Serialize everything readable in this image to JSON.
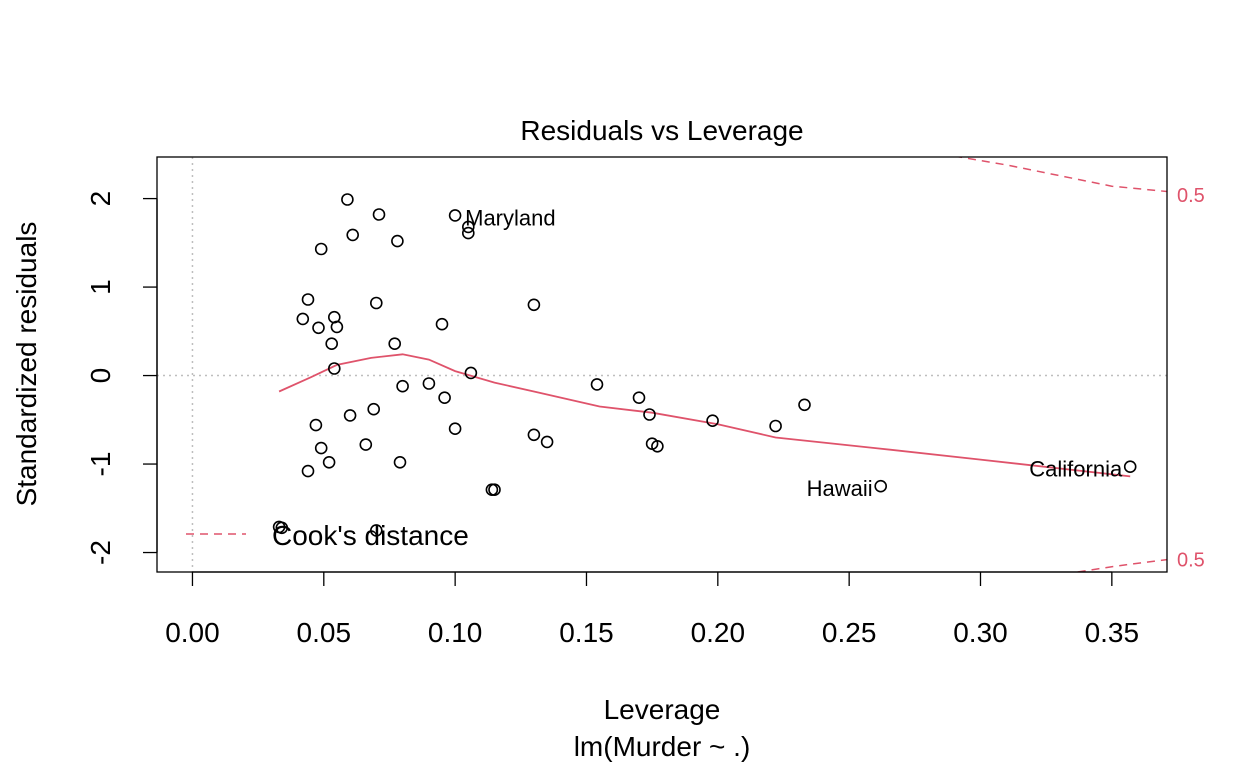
{
  "chart_data": {
    "type": "scatter",
    "title": "Residuals vs Leverage",
    "xlabel": "Leverage",
    "xsublabel": "lm(Murder ~ .)",
    "ylabel": "Standardized residuals",
    "xlim": [
      -0.0135,
      0.371
    ],
    "ylim": [
      -2.22,
      2.47
    ],
    "x_ticks": [
      {
        "value": 0.0,
        "label": "0.00"
      },
      {
        "value": 0.05,
        "label": "0.05"
      },
      {
        "value": 0.1,
        "label": "0.10"
      },
      {
        "value": 0.15,
        "label": "0.15"
      },
      {
        "value": 0.2,
        "label": "0.20"
      },
      {
        "value": 0.25,
        "label": "0.25"
      },
      {
        "value": 0.3,
        "label": "0.30"
      },
      {
        "value": 0.35,
        "label": "0.35"
      }
    ],
    "y_ticks": [
      {
        "value": -2,
        "label": "-2"
      },
      {
        "value": -1,
        "label": "-1"
      },
      {
        "value": 0,
        "label": "0"
      },
      {
        "value": 1,
        "label": "1"
      },
      {
        "value": 2,
        "label": "2"
      }
    ],
    "points": [
      {
        "x": 0.033,
        "y": -1.71
      },
      {
        "x": 0.034,
        "y": -1.72
      },
      {
        "x": 0.042,
        "y": 0.64
      },
      {
        "x": 0.044,
        "y": 0.86
      },
      {
        "x": 0.044,
        "y": -1.08
      },
      {
        "x": 0.047,
        "y": -0.56
      },
      {
        "x": 0.048,
        "y": 0.54
      },
      {
        "x": 0.049,
        "y": -0.82
      },
      {
        "x": 0.049,
        "y": 1.43
      },
      {
        "x": 0.052,
        "y": -0.98
      },
      {
        "x": 0.053,
        "y": 0.36
      },
      {
        "x": 0.054,
        "y": 0.66
      },
      {
        "x": 0.054,
        "y": 0.08
      },
      {
        "x": 0.055,
        "y": 0.55
      },
      {
        "x": 0.059,
        "y": 1.99
      },
      {
        "x": 0.06,
        "y": -0.45
      },
      {
        "x": 0.061,
        "y": 1.59
      },
      {
        "x": 0.066,
        "y": -0.78
      },
      {
        "x": 0.069,
        "y": -0.38
      },
      {
        "x": 0.07,
        "y": 0.82
      },
      {
        "x": 0.07,
        "y": -1.75
      },
      {
        "x": 0.071,
        "y": 1.82
      },
      {
        "x": 0.077,
        "y": 0.36
      },
      {
        "x": 0.078,
        "y": 1.52
      },
      {
        "x": 0.079,
        "y": -0.98
      },
      {
        "x": 0.08,
        "y": -0.12
      },
      {
        "x": 0.09,
        "y": -0.09
      },
      {
        "x": 0.095,
        "y": 0.58
      },
      {
        "x": 0.096,
        "y": -0.25
      },
      {
        "x": 0.1,
        "y": 1.81
      },
      {
        "x": 0.1,
        "y": -0.6
      },
      {
        "x": 0.105,
        "y": 1.68
      },
      {
        "x": 0.105,
        "y": 1.61
      },
      {
        "x": 0.106,
        "y": 0.03
      },
      {
        "x": 0.114,
        "y": -1.29
      },
      {
        "x": 0.115,
        "y": -1.29
      },
      {
        "x": 0.13,
        "y": 0.8
      },
      {
        "x": 0.13,
        "y": -0.67
      },
      {
        "x": 0.135,
        "y": -0.75
      },
      {
        "x": 0.154,
        "y": -0.1
      },
      {
        "x": 0.17,
        "y": -0.25
      },
      {
        "x": 0.174,
        "y": -0.44
      },
      {
        "x": 0.175,
        "y": -0.77
      },
      {
        "x": 0.177,
        "y": -0.8
      },
      {
        "x": 0.198,
        "y": -0.51
      },
      {
        "x": 0.222,
        "y": -0.57
      },
      {
        "x": 0.233,
        "y": -0.33
      },
      {
        "x": 0.262,
        "y": -1.25
      },
      {
        "x": 0.357,
        "y": -1.03
      }
    ],
    "labeled_points": [
      {
        "label": "Maryland",
        "x": 0.1,
        "y": 1.81,
        "anchor": "right"
      },
      {
        "label": "Hawaii",
        "x": 0.262,
        "y": -1.25,
        "anchor": "left"
      },
      {
        "label": "California",
        "x": 0.357,
        "y": -1.03,
        "anchor": "left"
      }
    ],
    "smooth_line": {
      "x": [
        0.033,
        0.045,
        0.055,
        0.068,
        0.08,
        0.09,
        0.1,
        0.115,
        0.13,
        0.155,
        0.175,
        0.2,
        0.222,
        0.26,
        0.3,
        0.357
      ],
      "y": [
        -0.18,
        -0.02,
        0.12,
        0.2,
        0.24,
        0.18,
        0.05,
        -0.08,
        -0.18,
        -0.35,
        -0.42,
        -0.55,
        -0.7,
        -0.82,
        -0.95,
        -1.14
      ]
    },
    "cooks_distance": {
      "legend_label": "Cook's distance",
      "contour_label": "0.5",
      "level": 0.5,
      "upper": {
        "x": [
          0.29,
          0.31,
          0.33,
          0.35,
          0.371
        ],
        "y": [
          2.48,
          2.38,
          2.26,
          2.14,
          2.08
        ]
      },
      "lower": {
        "x": [
          0.337,
          0.35,
          0.36,
          0.371
        ],
        "y": [
          -2.22,
          -2.16,
          -2.12,
          -2.08
        ]
      },
      "label_y_upper": 2.04,
      "label_y_lower": -2.08
    },
    "reference_lines": {
      "h": 0,
      "v": 0
    },
    "legend_position": "bottom-left",
    "grid": false,
    "colors": {
      "points": "#000000",
      "smooth": "#DF536B",
      "cooks": "#DF536B",
      "reference": "#bebebe",
      "axis": "#000000"
    }
  }
}
